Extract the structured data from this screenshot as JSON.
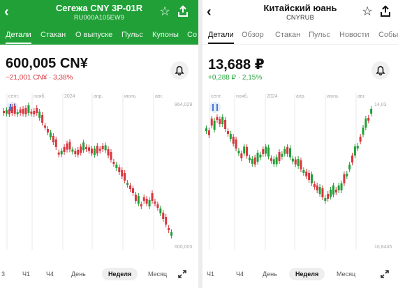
{
  "left": {
    "title": "Сегежа CNY 3P-01R",
    "subtitle": "RU000A105EW9",
    "tabs": [
      "Детали",
      "Стакан",
      "О выпуске",
      "Пульс",
      "Купоны",
      "Со"
    ],
    "price": "600,005 CN¥",
    "change": "−21,001 CN¥ · 3,38%",
    "months": [
      "сент.",
      "нояб.",
      "2024",
      "апр.",
      "июнь",
      "авг."
    ],
    "axis_top": "964,029",
    "axis_bottom": "600,005",
    "periods": [
      "3",
      "Ч1",
      "Ч4",
      "День",
      "Неделя",
      "Месяц"
    ],
    "colors": {
      "header": "#21a038",
      "up": "#21a038",
      "down": "#d9363e"
    }
  },
  "right": {
    "title": "Китайский юань",
    "subtitle": "CNYRUB",
    "tabs": [
      "Детали",
      "Обзор",
      "Стакан",
      "Пульс",
      "Новости",
      "Собы"
    ],
    "price": "13,688 ₽",
    "change": "+0,288 ₽ · 2,15%",
    "months": [
      "сент.",
      "нояб.",
      "2024",
      "апр.",
      "июнь",
      "авг."
    ],
    "axis_top": "14,03",
    "axis_bottom": "10,8445",
    "periods": [
      "Ч1",
      "Ч4",
      "День",
      "Неделя",
      "Месяц"
    ],
    "colors": {
      "up": "#21a038",
      "down": "#d9363e"
    }
  },
  "icons": [
    "back-arrow-icon",
    "star-icon",
    "share-icon",
    "bell-icon",
    "candle-indicator-icon",
    "expand-icon"
  ]
}
